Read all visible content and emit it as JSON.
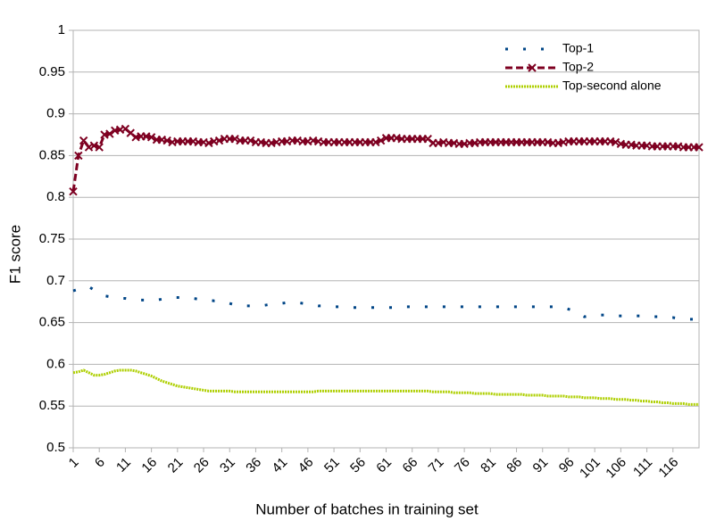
{
  "chart_data": {
    "type": "line",
    "x_label": "Number of batches in training set",
    "y_label": "F1 score",
    "categories": [
      1,
      null,
      null,
      null,
      null,
      6,
      null,
      null,
      null,
      null,
      11,
      null,
      null,
      null,
      null,
      16,
      null,
      null,
      null,
      null,
      21,
      null,
      null,
      null,
      null,
      26,
      null,
      null,
      null,
      null,
      31,
      null,
      null,
      null,
      null,
      36,
      null,
      null,
      null,
      null,
      41,
      null,
      null,
      null,
      null,
      46,
      null,
      null,
      null,
      null,
      51,
      null,
      null,
      null,
      null,
      56,
      null,
      null,
      null,
      null,
      61,
      null,
      null,
      null,
      null,
      66,
      null,
      null,
      null,
      null,
      71,
      null,
      null,
      null,
      null,
      76,
      null,
      null,
      null,
      null,
      81,
      null,
      null,
      null,
      null,
      86,
      null,
      null,
      null,
      null,
      91,
      null,
      null,
      null,
      null,
      96,
      null,
      null,
      null,
      null,
      101,
      null,
      null,
      null,
      null,
      106,
      null,
      null,
      null,
      null,
      111,
      null,
      null,
      null,
      null,
      116,
      null,
      null,
      null,
      null,
      null
    ],
    "ylim": [
      0.5,
      1
    ],
    "yticks": [
      0.5,
      0.55,
      0.6,
      0.65,
      0.7,
      0.75,
      0.8,
      0.85,
      0.9,
      0.95,
      1
    ],
    "grid": true,
    "legend": "top-right",
    "series": [
      {
        "name": "Top-1",
        "color": "#004586",
        "line_style": "dotted",
        "marker": "none",
        "values": [
          0.688,
          0.69,
          0.692,
          0.693,
          0.689,
          0.686,
          0.682,
          0.681,
          0.68,
          0.679,
          0.679,
          0.678,
          0.678,
          0.677,
          0.677,
          0.676,
          0.677,
          0.678,
          0.679,
          0.68,
          0.68,
          0.68,
          0.68,
          0.679,
          0.678,
          0.678,
          0.677,
          0.676,
          0.676,
          0.675,
          0.673,
          0.671,
          0.67,
          0.67,
          0.67,
          0.67,
          0.67,
          0.671,
          0.672,
          0.673,
          0.673,
          0.674,
          0.674,
          0.674,
          0.673,
          0.672,
          0.671,
          0.67,
          0.67,
          0.669,
          0.669,
          0.669,
          0.668,
          0.668,
          0.668,
          0.668,
          0.668,
          0.668,
          0.668,
          0.668,
          0.668,
          0.668,
          0.668,
          0.669,
          0.669,
          0.669,
          0.669,
          0.669,
          0.669,
          0.669,
          0.669,
          0.669,
          0.669,
          0.669,
          0.669,
          0.669,
          0.669,
          0.669,
          0.669,
          0.669,
          0.669,
          0.669,
          0.669,
          0.669,
          0.669,
          0.669,
          0.669,
          0.669,
          0.669,
          0.669,
          0.669,
          0.669,
          0.669,
          0.668,
          0.668,
          0.666,
          0.664,
          0.66,
          0.657,
          0.658,
          0.658,
          0.659,
          0.659,
          0.658,
          0.658,
          0.658,
          0.658,
          0.658,
          0.658,
          0.658,
          0.657,
          0.657,
          0.657,
          0.656,
          0.656,
          0.656,
          0.655,
          0.655,
          0.654,
          0.654,
          0.654
        ]
      },
      {
        "name": "Top-2",
        "color": "#7e0021",
        "line_style": "dashed",
        "marker": "x",
        "values": [
          0.807,
          0.85,
          0.868,
          0.86,
          0.862,
          0.86,
          0.875,
          0.876,
          0.88,
          0.881,
          0.882,
          0.877,
          0.872,
          0.873,
          0.873,
          0.872,
          0.869,
          0.869,
          0.868,
          0.866,
          0.867,
          0.867,
          0.867,
          0.867,
          0.866,
          0.866,
          0.865,
          0.867,
          0.868,
          0.87,
          0.87,
          0.87,
          0.868,
          0.868,
          0.868,
          0.866,
          0.866,
          0.865,
          0.865,
          0.866,
          0.867,
          0.867,
          0.868,
          0.868,
          0.867,
          0.867,
          0.868,
          0.867,
          0.866,
          0.866,
          0.866,
          0.866,
          0.866,
          0.866,
          0.866,
          0.866,
          0.866,
          0.866,
          0.866,
          0.868,
          0.871,
          0.871,
          0.871,
          0.87,
          0.87,
          0.87,
          0.87,
          0.87,
          0.87,
          0.865,
          0.865,
          0.866,
          0.865,
          0.865,
          0.864,
          0.864,
          0.865,
          0.865,
          0.866,
          0.866,
          0.866,
          0.866,
          0.866,
          0.866,
          0.866,
          0.866,
          0.866,
          0.866,
          0.866,
          0.866,
          0.866,
          0.866,
          0.865,
          0.865,
          0.866,
          0.867,
          0.867,
          0.867,
          0.867,
          0.867,
          0.867,
          0.867,
          0.867,
          0.867,
          0.866,
          0.864,
          0.863,
          0.863,
          0.862,
          0.862,
          0.862,
          0.861,
          0.861,
          0.861,
          0.861,
          0.861,
          0.861,
          0.86,
          0.86,
          0.86,
          0.86
        ]
      },
      {
        "name": "Top-second alone",
        "color": "#aecf00",
        "line_style": "fine-dotted",
        "marker": "none",
        "values": [
          0.59,
          0.591,
          0.593,
          0.59,
          0.587,
          0.587,
          0.588,
          0.59,
          0.592,
          0.593,
          0.593,
          0.593,
          0.592,
          0.59,
          0.588,
          0.586,
          0.583,
          0.58,
          0.578,
          0.576,
          0.574,
          0.573,
          0.572,
          0.571,
          0.57,
          0.569,
          0.568,
          0.568,
          0.568,
          0.568,
          0.568,
          0.567,
          0.567,
          0.567,
          0.567,
          0.567,
          0.567,
          0.567,
          0.567,
          0.567,
          0.567,
          0.567,
          0.567,
          0.567,
          0.567,
          0.567,
          0.567,
          0.568,
          0.568,
          0.568,
          0.568,
          0.568,
          0.568,
          0.568,
          0.568,
          0.568,
          0.568,
          0.568,
          0.568,
          0.568,
          0.568,
          0.568,
          0.568,
          0.568,
          0.568,
          0.568,
          0.568,
          0.568,
          0.568,
          0.567,
          0.567,
          0.567,
          0.567,
          0.566,
          0.566,
          0.566,
          0.566,
          0.565,
          0.565,
          0.565,
          0.565,
          0.564,
          0.564,
          0.564,
          0.564,
          0.564,
          0.564,
          0.563,
          0.563,
          0.563,
          0.563,
          0.562,
          0.562,
          0.562,
          0.562,
          0.561,
          0.561,
          0.561,
          0.56,
          0.56,
          0.56,
          0.559,
          0.559,
          0.559,
          0.558,
          0.558,
          0.558,
          0.557,
          0.557,
          0.556,
          0.556,
          0.555,
          0.555,
          0.554,
          0.554,
          0.553,
          0.553,
          0.553,
          0.552,
          0.552,
          0.552
        ]
      }
    ]
  }
}
